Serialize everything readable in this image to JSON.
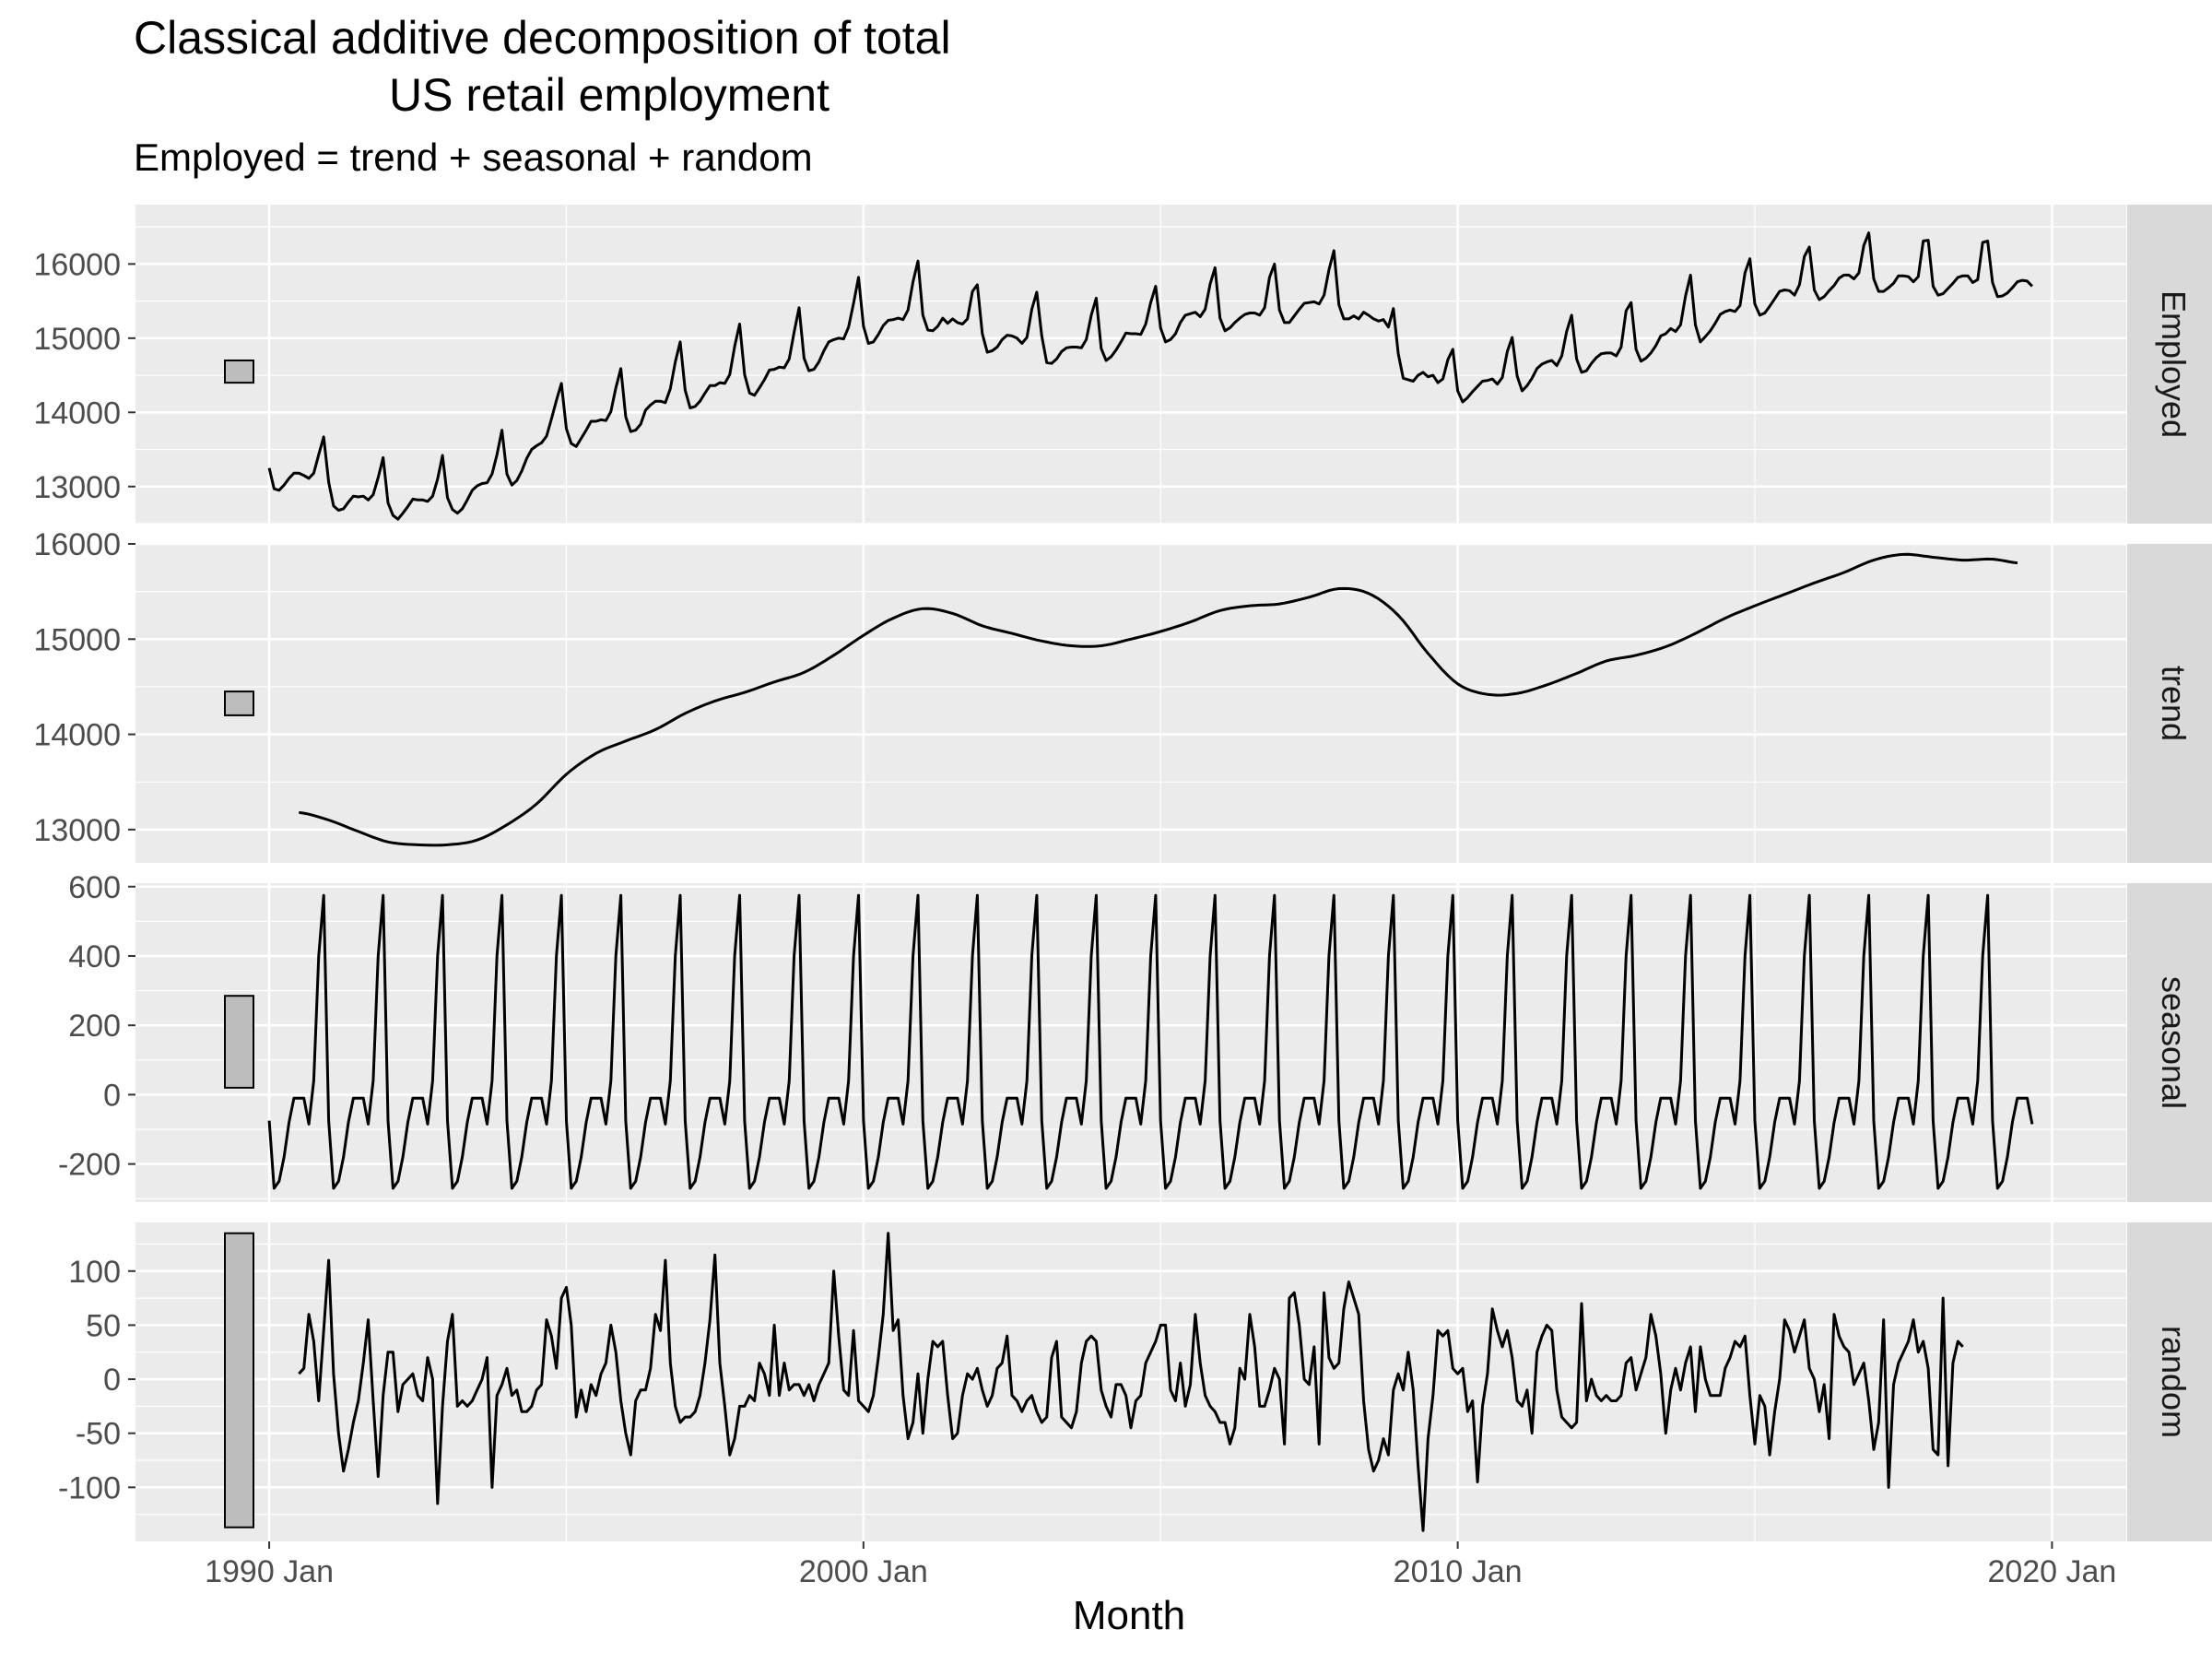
{
  "chart_data": {
    "type": "line",
    "title_lines": [
      "Classical additive decomposition of total",
      "US retail employment"
    ],
    "subtitle": "Employed = trend + seasonal + random",
    "xlabel": "Month",
    "x_ticks": [
      "1990 Jan",
      "2000 Jan",
      "2010 Jan",
      "2020 Jan"
    ],
    "x_tick_values": [
      1990.0,
      2000.0,
      2010.0,
      2020.0
    ],
    "x_range": [
      1987.75,
      2021.25
    ],
    "series_color": "#000000",
    "panel_background": "#ebebeb",
    "strip_background": "#d9d9d9",
    "scale_bar_color": "#bdbdbd",
    "grid": true,
    "panels": [
      {
        "name": "Employed",
        "y_range": [
          12500,
          16800
        ],
        "y_ticks": [
          13000,
          14000,
          15000,
          16000
        ],
        "y_tick_labels": [
          "13000",
          "14000",
          "15000",
          "16000"
        ],
        "scale_bar": [
          14400,
          14700
        ],
        "x_start": 1990.0,
        "x_step": 0.0833333,
        "values": [
          13250,
          12970,
          12950,
          13020,
          13110,
          13180,
          13180,
          13150,
          13110,
          13180,
          13430,
          13670,
          13060,
          12740,
          12680,
          12700,
          12790,
          12870,
          12860,
          12870,
          12820,
          12890,
          13120,
          13390,
          12780,
          12610,
          12560,
          12640,
          12730,
          12830,
          12820,
          12820,
          12800,
          12870,
          13100,
          13420,
          12850,
          12690,
          12640,
          12700,
          12820,
          12950,
          13010,
          13040,
          13050,
          13170,
          13430,
          13760,
          13170,
          13020,
          13080,
          13210,
          13380,
          13500,
          13550,
          13590,
          13680,
          13910,
          14160,
          14390,
          13780,
          13580,
          13540,
          13650,
          13760,
          13880,
          13880,
          13900,
          13890,
          14010,
          14330,
          14590,
          13940,
          13740,
          13760,
          13840,
          14030,
          14100,
          14150,
          14150,
          14130,
          14320,
          14680,
          14950,
          14300,
          14060,
          14080,
          14150,
          14260,
          14360,
          14360,
          14400,
          14390,
          14510,
          14890,
          15190,
          14510,
          14260,
          14230,
          14330,
          14440,
          14570,
          14580,
          14610,
          14600,
          14720,
          15080,
          15410,
          14730,
          14560,
          14580,
          14680,
          14830,
          14950,
          14980,
          15000,
          14990,
          15150,
          15470,
          15820,
          15160,
          14930,
          14950,
          15050,
          15170,
          15240,
          15250,
          15270,
          15250,
          15380,
          15760,
          16040,
          15310,
          15110,
          15100,
          15160,
          15270,
          15200,
          15260,
          15210,
          15190,
          15260,
          15630,
          15720,
          15060,
          14810,
          14830,
          14880,
          14980,
          15040,
          15030,
          15000,
          14930,
          15010,
          15390,
          15620,
          15030,
          14670,
          14660,
          14720,
          14820,
          14870,
          14880,
          14880,
          14870,
          14980,
          15310,
          15540,
          14860,
          14700,
          14750,
          14840,
          14950,
          15070,
          15060,
          15060,
          15050,
          15190,
          15480,
          15700,
          15140,
          14950,
          14980,
          15060,
          15210,
          15310,
          15330,
          15350,
          15290,
          15390,
          15730,
          15950,
          15270,
          15100,
          15140,
          15210,
          15270,
          15320,
          15340,
          15340,
          15310,
          15410,
          15820,
          16000,
          15380,
          15210,
          15210,
          15300,
          15390,
          15470,
          15480,
          15490,
          15460,
          15580,
          15920,
          16180,
          15450,
          15260,
          15260,
          15300,
          15260,
          15350,
          15310,
          15260,
          15230,
          15250,
          15150,
          15400,
          14790,
          14460,
          14440,
          14420,
          14500,
          14540,
          14480,
          14500,
          14400,
          14450,
          14710,
          14850,
          14290,
          14140,
          14200,
          14280,
          14350,
          14420,
          14430,
          14450,
          14380,
          14470,
          14820,
          15010,
          14490,
          14290,
          14360,
          14460,
          14590,
          14650,
          14680,
          14700,
          14630,
          14760,
          15090,
          15310,
          14720,
          14540,
          14560,
          14660,
          14740,
          14790,
          14800,
          14800,
          14760,
          14880,
          15370,
          15480,
          14850,
          14690,
          14730,
          14800,
          14900,
          15030,
          15060,
          15130,
          15090,
          15180,
          15570,
          15850,
          15180,
          14950,
          15020,
          15100,
          15200,
          15320,
          15360,
          15380,
          15360,
          15440,
          15880,
          16070,
          15460,
          15310,
          15340,
          15430,
          15530,
          15630,
          15650,
          15640,
          15580,
          15720,
          16100,
          16230,
          15650,
          15520,
          15560,
          15640,
          15710,
          15810,
          15850,
          15850,
          15800,
          15880,
          16250,
          16420,
          15800,
          15630,
          15630,
          15680,
          15740,
          15840,
          15840,
          15830,
          15760,
          15830,
          16310,
          16320,
          15700,
          15580,
          15600,
          15670,
          15740,
          15820,
          15840,
          15840,
          15750,
          15790,
          16290,
          16310,
          15750,
          15560,
          15570,
          15610,
          15680,
          15760,
          15780,
          15770,
          15700
        ]
      },
      {
        "name": "trend",
        "y_range": [
          12650,
          16000
        ],
        "y_ticks": [
          13000,
          14000,
          15000,
          16000
        ],
        "y_tick_labels": [
          "13000",
          "14000",
          "15000",
          "16000"
        ],
        "scale_bar": [
          14200,
          14450
        ],
        "knots_x": [
          1990.5,
          1991.0,
          1991.5,
          1992.0,
          1992.5,
          1993.0,
          1993.5,
          1994.0,
          1994.5,
          1995.0,
          1995.5,
          1996.0,
          1996.5,
          1997.0,
          1997.5,
          1998.0,
          1998.5,
          1999.0,
          1999.5,
          2000.0,
          2000.5,
          2001.0,
          2001.5,
          2002.0,
          2002.5,
          2003.0,
          2003.5,
          2004.0,
          2004.5,
          2005.0,
          2005.5,
          2006.0,
          2006.5,
          2007.0,
          2007.5,
          2008.0,
          2008.5,
          2009.0,
          2009.5,
          2010.0,
          2010.5,
          2011.0,
          2011.5,
          2012.0,
          2012.5,
          2013.0,
          2013.5,
          2014.0,
          2014.5,
          2015.0,
          2015.5,
          2016.0,
          2016.5,
          2017.0,
          2017.5,
          2018.0,
          2018.5,
          2019.0,
          2019.42
        ],
        "knots_y": [
          13180,
          13100,
          12980,
          12870,
          12840,
          12840,
          12890,
          13050,
          13270,
          13580,
          13800,
          13930,
          14050,
          14220,
          14350,
          14440,
          14550,
          14650,
          14830,
          15040,
          15220,
          15320,
          15270,
          15140,
          15060,
          14980,
          14930,
          14930,
          15000,
          15080,
          15180,
          15300,
          15350,
          15370,
          15440,
          15530,
          15480,
          15250,
          14850,
          14530,
          14420,
          14430,
          14520,
          14640,
          14770,
          14830,
          14920,
          15060,
          15220,
          15350,
          15470,
          15590,
          15700,
          15830,
          15890,
          15860,
          15830,
          15840,
          15800
        ]
      },
      {
        "name": "seasonal",
        "y_range": [
          -310,
          610
        ],
        "y_ticks": [
          -200,
          0,
          200,
          400,
          600
        ],
        "y_tick_labels": [
          "-200",
          "0",
          "200",
          "400",
          "600"
        ],
        "scale_bar": [
          20,
          285
        ],
        "x_start": 1990.0,
        "pattern": [
          -75,
          -270,
          -250,
          -180,
          -80,
          -10,
          -10,
          -10,
          -85,
          40,
          400,
          575
        ],
        "n_points": 357
      },
      {
        "name": "random",
        "y_range": [
          -150,
          145
        ],
        "y_ticks": [
          -100,
          -50,
          0,
          50,
          100
        ],
        "y_tick_labels": [
          "-100",
          "-50",
          "0",
          "50",
          "100"
        ],
        "scale_bar": [
          -137,
          135
        ],
        "x_start": 1990.5,
        "x_step": 0.0833333,
        "values": [
          5,
          10,
          60,
          35,
          -20,
          45,
          110,
          5,
          -50,
          -85,
          -65,
          -40,
          -20,
          15,
          55,
          -20,
          -90,
          -15,
          25,
          25,
          -30,
          -5,
          0,
          5,
          -15,
          -20,
          20,
          0,
          -115,
          -25,
          35,
          60,
          -25,
          -20,
          -25,
          -20,
          -10,
          0,
          20,
          -100,
          -15,
          -5,
          10,
          -15,
          -10,
          -30,
          -30,
          -25,
          -10,
          -5,
          55,
          40,
          10,
          75,
          85,
          50,
          -35,
          -10,
          -30,
          -5,
          -15,
          5,
          15,
          50,
          25,
          -20,
          -50,
          -70,
          -20,
          -10,
          -10,
          10,
          60,
          45,
          110,
          15,
          -25,
          -40,
          -35,
          -35,
          -30,
          -15,
          15,
          55,
          115,
          15,
          -25,
          -70,
          -55,
          -25,
          -25,
          -15,
          -20,
          15,
          5,
          -15,
          50,
          -15,
          15,
          -10,
          -5,
          -5,
          -15,
          -5,
          -20,
          -5,
          5,
          15,
          100,
          40,
          -10,
          -15,
          45,
          -20,
          -25,
          -30,
          -15,
          20,
          60,
          135,
          45,
          55,
          -15,
          -55,
          -40,
          5,
          -50,
          0,
          35,
          30,
          35,
          -15,
          -55,
          -50,
          -15,
          5,
          0,
          10,
          -10,
          -25,
          -15,
          10,
          15,
          40,
          -15,
          -20,
          -30,
          -20,
          -15,
          -30,
          -40,
          -35,
          20,
          35,
          -35,
          -40,
          -45,
          -30,
          15,
          35,
          40,
          35,
          -10,
          -25,
          -35,
          -5,
          -5,
          -15,
          -45,
          -20,
          -15,
          15,
          25,
          35,
          50,
          50,
          -10,
          -20,
          15,
          -25,
          -5,
          60,
          15,
          -15,
          -25,
          -30,
          -40,
          -40,
          -60,
          -45,
          10,
          0,
          60,
          30,
          -25,
          -25,
          -10,
          10,
          0,
          -60,
          75,
          80,
          50,
          0,
          -5,
          30,
          -60,
          80,
          20,
          10,
          15,
          65,
          90,
          75,
          60,
          -20,
          -65,
          -85,
          -75,
          -55,
          -70,
          -10,
          5,
          -10,
          25,
          -10,
          -80,
          -140,
          -55,
          -15,
          45,
          40,
          45,
          10,
          5,
          10,
          -30,
          -20,
          -95,
          -25,
          5,
          65,
          45,
          30,
          45,
          20,
          -20,
          -25,
          -10,
          -50,
          25,
          40,
          50,
          45,
          -10,
          -35,
          -40,
          -45,
          -40,
          70,
          -20,
          0,
          -15,
          -20,
          -15,
          -20,
          -20,
          -15,
          15,
          20,
          -10,
          5,
          20,
          60,
          40,
          5,
          -50,
          -10,
          10,
          -10,
          15,
          30,
          -30,
          30,
          0,
          -15,
          -15,
          -15,
          10,
          20,
          35,
          30,
          40,
          -15,
          -60,
          -15,
          -25,
          -70,
          -30,
          0,
          55,
          45,
          25,
          40,
          55,
          10,
          0,
          -30,
          -5,
          -55,
          60,
          40,
          30,
          25,
          -5,
          5,
          15,
          -20,
          -65,
          -40,
          55,
          -100,
          -5,
          15,
          25,
          35,
          55,
          25,
          35,
          10,
          -65,
          -70,
          75,
          -80,
          15,
          35,
          30
        ]
      }
    ]
  }
}
